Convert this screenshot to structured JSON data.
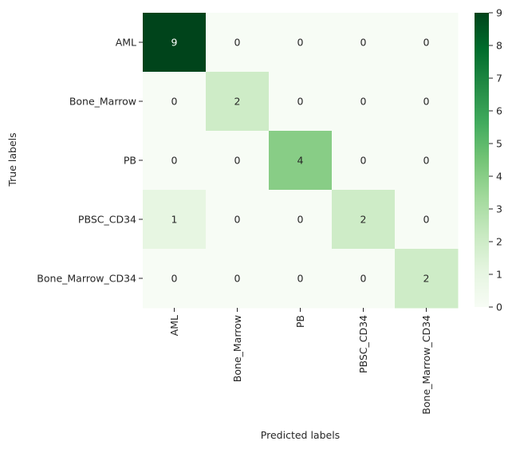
{
  "chart_data": {
    "type": "heatmap",
    "row_labels": [
      "AML",
      "Bone_Marrow",
      "PB",
      "PBSC_CD34",
      "Bone_Marrow_CD34"
    ],
    "col_labels": [
      "AML",
      "Bone_Marrow",
      "PB",
      "PBSC_CD34",
      "Bone_Marrow_CD34"
    ],
    "values": [
      [
        9,
        0,
        0,
        0,
        0
      ],
      [
        0,
        2,
        0,
        0,
        0
      ],
      [
        0,
        0,
        4,
        0,
        0
      ],
      [
        1,
        0,
        0,
        2,
        0
      ],
      [
        0,
        0,
        0,
        0,
        2
      ]
    ],
    "xlabel": "Predicted labels",
    "ylabel": "True labels",
    "colorbar": {
      "min": 0,
      "max": 9,
      "ticks": [
        0,
        1,
        2,
        3,
        4,
        5,
        6,
        7,
        8,
        9
      ]
    },
    "colormap": "Greens",
    "colors": [
      "#f7fcf5",
      "#e5f5e0",
      "#c7e9c0",
      "#a1d99b",
      "#74c476",
      "#41ab5d",
      "#238b45",
      "#006d2c",
      "#00441b"
    ]
  }
}
